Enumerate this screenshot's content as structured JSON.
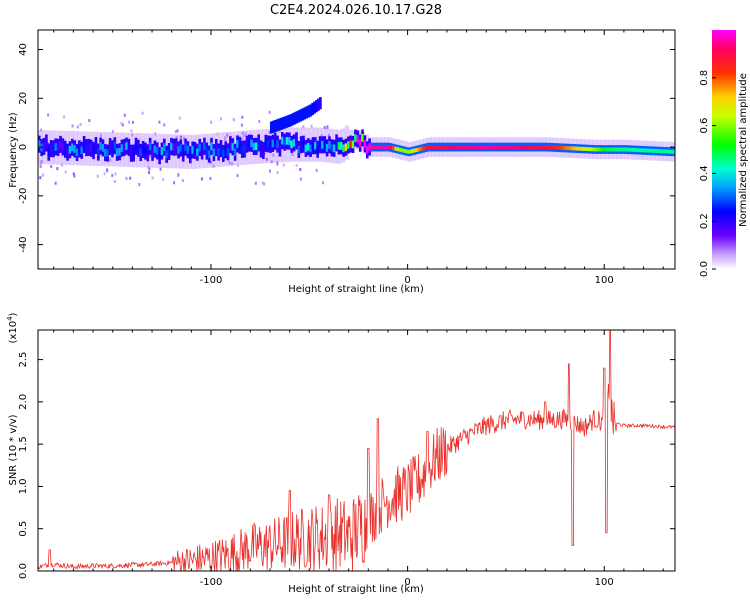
{
  "title": "C2E4.2024.026.10.17.G28",
  "colors": {
    "snr_line": "#e8312d"
  },
  "chart_data": [
    {
      "type": "heatmap",
      "xlabel": "Height of straight line (km)",
      "ylabel": "Frequency (Hz)",
      "xlim": [
        -188,
        136
      ],
      "ylim": [
        -50,
        48
      ],
      "x_ticks": [
        "-100",
        "0",
        "100"
      ],
      "x_tick_values": [
        -100,
        0,
        100
      ],
      "y_ticks": [
        "40",
        "20",
        "0",
        "-20",
        "-40"
      ],
      "y_tick_values": [
        40,
        20,
        0,
        -20,
        -40
      ],
      "colorbar": {
        "label": "Normalized spectral amplitude",
        "ticks": [
          "0.0",
          "0.2",
          "0.4",
          "0.6",
          "0.8"
        ],
        "tick_values": [
          0.0,
          0.2,
          0.4,
          0.6,
          0.8
        ],
        "range": [
          0,
          1
        ],
        "colormap": "rainbow"
      },
      "ridge": {
        "x": [
          -188,
          -150,
          -110,
          -80,
          -60,
          -45,
          -35,
          -30,
          -25,
          -20,
          -10,
          -5,
          0,
          10,
          40,
          70,
          95,
          100,
          110,
          136
        ],
        "freq": [
          0,
          -1,
          -2,
          0,
          1,
          1,
          0,
          3,
          3,
          0,
          0,
          -1,
          -2,
          0,
          0,
          0,
          -1,
          -1,
          -1,
          -2
        ],
        "amplitude": [
          0.25,
          0.25,
          0.25,
          0.28,
          0.3,
          0.3,
          0.35,
          0.6,
          0.8,
          0.95,
          0.95,
          0.6,
          0.6,
          0.9,
          0.95,
          0.9,
          0.6,
          0.5,
          0.45,
          0.45
        ]
      },
      "secondary_branch": {
        "x": [
          -70,
          -60,
          -50,
          -45
        ],
        "freq": [
          8,
          11,
          15,
          18
        ],
        "amplitude": [
          0.25,
          0.25,
          0.25,
          0.2
        ]
      }
    },
    {
      "type": "line",
      "xlabel": "Height of straight line (km)",
      "ylabel": "SNR (10 * v/v)",
      "y_scale_label": "(x10",
      "y_scale_exp": "4",
      "y_scale_close": ")",
      "xlim": [
        -188,
        136
      ],
      "ylim": [
        0,
        2.85
      ],
      "x_ticks": [
        "-100",
        "0",
        "100"
      ],
      "x_tick_values": [
        -100,
        0,
        100
      ],
      "y_ticks": [
        "0.0",
        "0.5",
        "1.0",
        "1.5",
        "2.0",
        "2.5"
      ],
      "y_tick_values": [
        0,
        0.5,
        1.0,
        1.5,
        2.0,
        2.5
      ],
      "series": [
        {
          "x": [
            -188,
            -180,
            -170,
            -160,
            -150,
            -140,
            -130,
            -120,
            -110,
            -100,
            -90,
            -80,
            -70,
            -60,
            -50,
            -40,
            -35,
            -30,
            -25,
            -20,
            -15,
            -10,
            -5,
            0,
            5,
            10,
            15,
            20,
            30,
            40,
            50,
            60,
            70,
            80,
            85,
            90,
            95,
            100,
            102,
            105,
            110,
            120,
            136
          ],
          "y": [
            0.05,
            0.08,
            0.05,
            0.06,
            0.06,
            0.07,
            0.08,
            0.1,
            0.12,
            0.15,
            0.2,
            0.28,
            0.3,
            0.35,
            0.4,
            0.4,
            0.45,
            0.4,
            0.5,
            0.6,
            0.75,
            0.85,
            0.9,
            0.95,
            1.05,
            1.2,
            1.35,
            1.45,
            1.6,
            1.72,
            1.78,
            1.8,
            1.78,
            1.8,
            1.75,
            1.7,
            1.8,
            1.75,
            2.0,
            1.75,
            1.72,
            1.72,
            1.7
          ],
          "spikes": [
            {
              "x": -182,
              "y": 0.25
            },
            {
              "x": -60,
              "y": 0.95
            },
            {
              "x": -40,
              "y": 0.9
            },
            {
              "x": -20,
              "y": 1.45
            },
            {
              "x": -15,
              "y": 1.8
            },
            {
              "x": 10,
              "y": 1.65
            },
            {
              "x": 70,
              "y": 2.0
            },
            {
              "x": 82,
              "y": 2.45
            },
            {
              "x": 84,
              "y": 0.3
            },
            {
              "x": 100,
              "y": 2.4
            },
            {
              "x": 101,
              "y": 0.45
            },
            {
              "x": 103,
              "y": 2.85
            }
          ]
        }
      ]
    }
  ]
}
